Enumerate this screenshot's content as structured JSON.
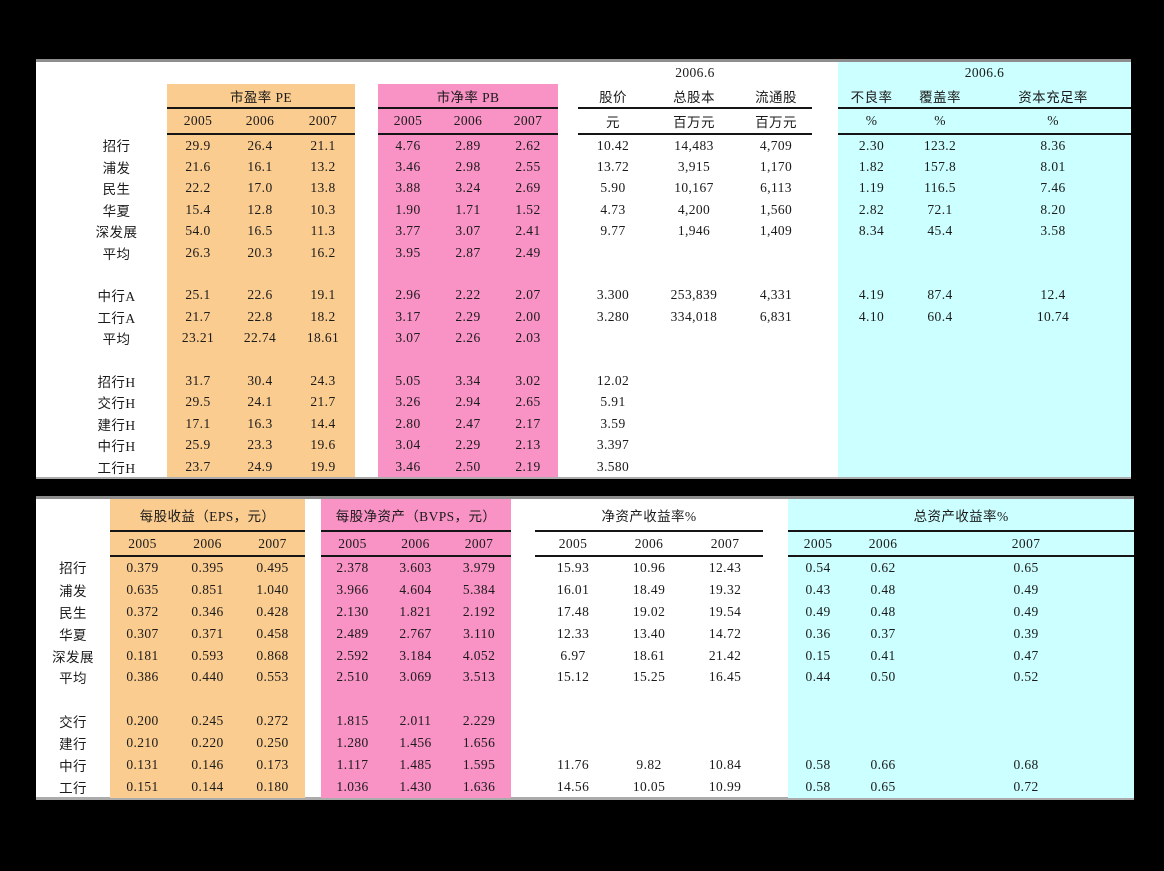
{
  "colors": {
    "page_bg": "#000000",
    "table_bg": "#FFFFFF",
    "orange": "#FBCC8F",
    "pink": "#F992C5",
    "cyan": "#CCFFFF",
    "line": "#151515",
    "top_border": "#8E8E8E",
    "bottom_border": "#ABABAB",
    "text": "#1B1B1B"
  },
  "table1": {
    "header": {
      "date_market": "2006.6",
      "date_quality": "2006.6",
      "pe_title": "市盈率 PE",
      "pb_title": "市净率 PB",
      "years": [
        "2005",
        "2006",
        "2007"
      ],
      "market_cols": [
        "股价",
        "总股本",
        "流通股"
      ],
      "market_units": [
        "元",
        "百万元",
        "百万元"
      ],
      "quality_cols": [
        "不良率",
        "覆盖率",
        "资本充足率"
      ],
      "quality_units": [
        "%",
        "%",
        "%"
      ]
    },
    "rows": [
      [
        "招行",
        "29.9",
        "26.4",
        "21.1",
        "4.76",
        "2.89",
        "2.62",
        "10.42",
        "14,483",
        "4,709",
        "2.30",
        "123.2",
        "8.36"
      ],
      [
        "浦发",
        "21.6",
        "16.1",
        "13.2",
        "3.46",
        "2.98",
        "2.55",
        "13.72",
        "3,915",
        "1,170",
        "1.82",
        "157.8",
        "8.01"
      ],
      [
        "民生",
        "22.2",
        "17.0",
        "13.8",
        "3.88",
        "3.24",
        "2.69",
        "5.90",
        "10,167",
        "6,113",
        "1.19",
        "116.5",
        "7.46"
      ],
      [
        "华夏",
        "15.4",
        "12.8",
        "10.3",
        "1.90",
        "1.71",
        "1.52",
        "4.73",
        "4,200",
        "1,560",
        "2.82",
        "72.1",
        "8.20"
      ],
      [
        "深发展",
        "54.0",
        "16.5",
        "11.3",
        "3.77",
        "3.07",
        "2.41",
        "9.77",
        "1,946",
        "1,409",
        "8.34",
        "45.4",
        "3.58"
      ],
      [
        "平均",
        "26.3",
        "20.3",
        "16.2",
        "3.95",
        "2.87",
        "2.49",
        "",
        "",
        "",
        "",
        "",
        ""
      ],
      [
        "",
        "",
        "",
        "",
        "",
        "",
        "",
        "",
        "",
        "",
        "",
        "",
        ""
      ],
      [
        "中行A",
        "25.1",
        "22.6",
        "19.1",
        "2.96",
        "2.22",
        "2.07",
        "3.300",
        "253,839",
        "4,331",
        "4.19",
        "87.4",
        "12.4"
      ],
      [
        "工行A",
        "21.7",
        "22.8",
        "18.2",
        "3.17",
        "2.29",
        "2.00",
        "3.280",
        "334,018",
        "6,831",
        "4.10",
        "60.4",
        "10.74"
      ],
      [
        "平均",
        "23.21",
        "22.74",
        "18.61",
        "3.07",
        "2.26",
        "2.03",
        "",
        "",
        "",
        "",
        "",
        ""
      ],
      [
        "",
        "",
        "",
        "",
        "",
        "",
        "",
        "",
        "",
        "",
        "",
        "",
        ""
      ],
      [
        "招行H",
        "31.7",
        "30.4",
        "24.3",
        "5.05",
        "3.34",
        "3.02",
        "12.02",
        "",
        "",
        "",
        "",
        ""
      ],
      [
        "交行H",
        "29.5",
        "24.1",
        "21.7",
        "3.26",
        "2.94",
        "2.65",
        "5.91",
        "",
        "",
        "",
        "",
        ""
      ],
      [
        "建行H",
        "17.1",
        "16.3",
        "14.4",
        "2.80",
        "2.47",
        "2.17",
        "3.59",
        "",
        "",
        "",
        "",
        ""
      ],
      [
        "中行H",
        "25.9",
        "23.3",
        "19.6",
        "3.04",
        "2.29",
        "2.13",
        "3.397",
        "",
        "",
        "",
        "",
        ""
      ],
      [
        "工行H",
        "23.7",
        "24.9",
        "19.9",
        "3.46",
        "2.50",
        "2.19",
        "3.580",
        "",
        "",
        "",
        "",
        ""
      ]
    ]
  },
  "table2": {
    "header": {
      "eps_title": "每股收益（EPS，元）",
      "bvps_title": "每股净资产（BVPS，元）",
      "roe_title": "净资产收益率%",
      "roa_title": "总资产收益率%",
      "years": [
        "2005",
        "2006",
        "2007"
      ]
    },
    "rows": [
      [
        "招行",
        "0.379",
        "0.395",
        "0.495",
        "2.378",
        "3.603",
        "3.979",
        "15.93",
        "10.96",
        "12.43",
        "0.54",
        "0.62",
        "0.65"
      ],
      [
        "浦发",
        "0.635",
        "0.851",
        "1.040",
        "3.966",
        "4.604",
        "5.384",
        "16.01",
        "18.49",
        "19.32",
        "0.43",
        "0.48",
        "0.49"
      ],
      [
        "民生",
        "0.372",
        "0.346",
        "0.428",
        "2.130",
        "1.821",
        "2.192",
        "17.48",
        "19.02",
        "19.54",
        "0.49",
        "0.48",
        "0.49"
      ],
      [
        "华夏",
        "0.307",
        "0.371",
        "0.458",
        "2.489",
        "2.767",
        "3.110",
        "12.33",
        "13.40",
        "14.72",
        "0.36",
        "0.37",
        "0.39"
      ],
      [
        "深发展",
        "0.181",
        "0.593",
        "0.868",
        "2.592",
        "3.184",
        "4.052",
        "6.97",
        "18.61",
        "21.42",
        "0.15",
        "0.41",
        "0.47"
      ],
      [
        "平均",
        "0.386",
        "0.440",
        "0.553",
        "2.510",
        "3.069",
        "3.513",
        "15.12",
        "15.25",
        "16.45",
        "0.44",
        "0.50",
        "0.52"
      ],
      [
        "",
        "",
        "",
        "",
        "",
        "",
        "",
        "",
        "",
        "",
        "",
        "",
        ""
      ],
      [
        "交行",
        "0.200",
        "0.245",
        "0.272",
        "1.815",
        "2.011",
        "2.229",
        "",
        "",
        "",
        "",
        "",
        ""
      ],
      [
        "建行",
        "0.210",
        "0.220",
        "0.250",
        "1.280",
        "1.456",
        "1.656",
        "",
        "",
        "",
        "",
        "",
        ""
      ],
      [
        "中行",
        "0.131",
        "0.146",
        "0.173",
        "1.117",
        "1.485",
        "1.595",
        "11.76",
        "9.82",
        "10.84",
        "0.58",
        "0.66",
        "0.68"
      ],
      [
        "工行",
        "0.151",
        "0.144",
        "0.180",
        "1.036",
        "1.430",
        "1.636",
        "14.56",
        "10.05",
        "10.99",
        "0.58",
        "0.65",
        "0.72"
      ]
    ]
  }
}
